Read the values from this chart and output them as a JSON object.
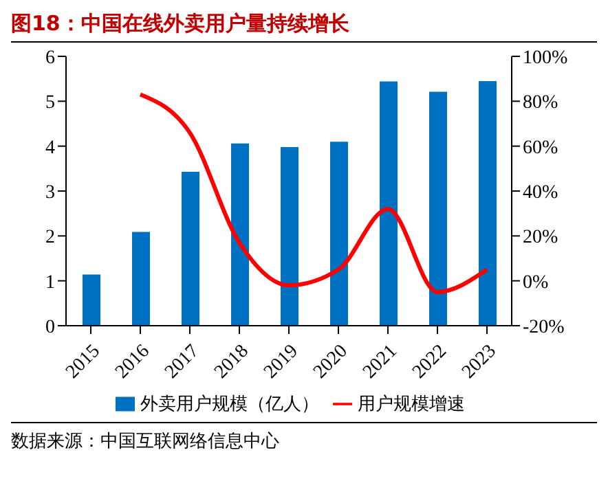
{
  "chart_data": {
    "type": "bar",
    "title": "图18：中国在线外卖用户量持续增长",
    "categories": [
      "2015",
      "2016",
      "2017",
      "2018",
      "2019",
      "2020",
      "2021",
      "2022",
      "2023"
    ],
    "series": [
      {
        "name": "外卖用户规模（亿人）",
        "color": "#0070c0",
        "values": [
          1.14,
          2.09,
          3.43,
          4.06,
          3.98,
          4.1,
          5.44,
          5.21,
          5.45
        ]
      },
      {
        "name": "用户规模增速",
        "type": "line",
        "axis": "y2",
        "color": "#ff0000",
        "values": [
          null,
          83,
          66,
          17,
          -2,
          5,
          32,
          -5,
          5
        ]
      }
    ],
    "ylim": [
      0,
      6
    ],
    "yticks": [
      0,
      1,
      2,
      3,
      4,
      5,
      6
    ],
    "y2lim": [
      -20,
      100
    ],
    "y2ticks": [
      {
        "value": -20,
        "label": "-20%"
      },
      {
        "value": 0,
        "label": "0%"
      },
      {
        "value": 20,
        "label": "20%"
      },
      {
        "value": 40,
        "label": "40%"
      },
      {
        "value": 60,
        "label": "60%"
      },
      {
        "value": 80,
        "label": "80%"
      },
      {
        "value": 100,
        "label": "100%"
      }
    ],
    "legend": "bottom",
    "grid": false,
    "marker": "none",
    "annotations": [
      "数据来源：中国互联网络信息中心"
    ]
  }
}
